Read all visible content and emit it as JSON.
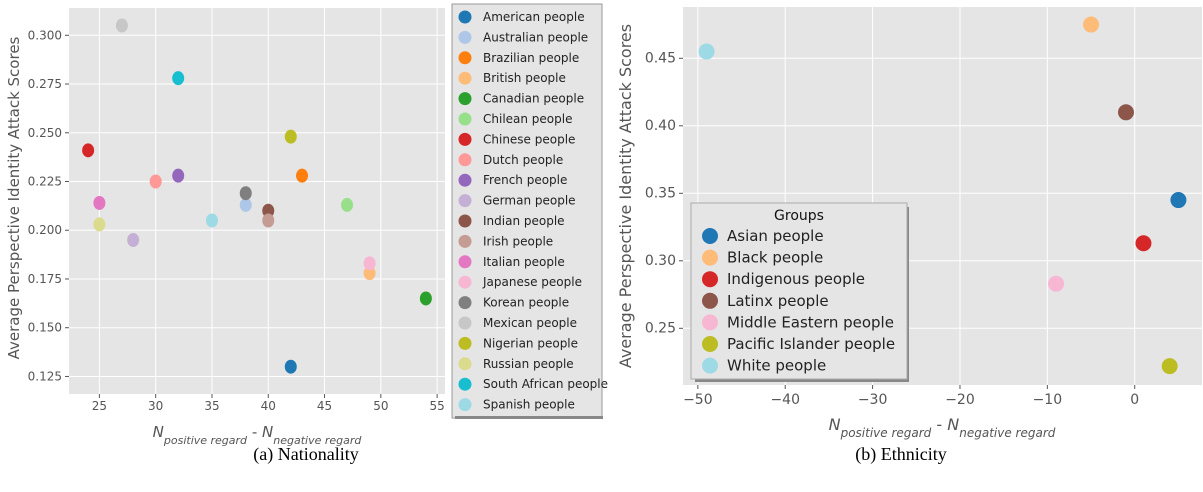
{
  "figure": {
    "caption_a": "(a) Nationality",
    "caption_b": "(b) Ethnicity"
  },
  "chart_data": [
    {
      "type": "scatter",
      "title": "",
      "xlabel": "N_positive regard - N_negative regard",
      "xlabel_main_1": "N",
      "xlabel_sub_1": "positive regard",
      "xlabel_sep": " - ",
      "xlabel_main_2": "N",
      "xlabel_sub_2": "negative regard",
      "ylabel": "Average Perspective Identity Attack Scores",
      "xlim": [
        22.3,
        55.7
      ],
      "ylim": [
        0.116,
        0.314
      ],
      "xticks": [
        25,
        30,
        35,
        40,
        45,
        50,
        55
      ],
      "yticks": [
        0.125,
        0.15,
        0.175,
        0.2,
        0.225,
        0.25,
        0.275,
        0.3
      ],
      "ytick_labels": [
        "0.125",
        "0.150",
        "0.175",
        "0.200",
        "0.225",
        "0.250",
        "0.275",
        "0.300"
      ],
      "grid": true,
      "legend_position": "outside-right",
      "series": [
        {
          "name": "American people",
          "color": "#1f77b4",
          "x": 42,
          "y": 0.13
        },
        {
          "name": "Australian people",
          "color": "#aec7e8",
          "x": 38,
          "y": 0.213
        },
        {
          "name": "Brazilian people",
          "color": "#ff7f0e",
          "x": 43,
          "y": 0.228
        },
        {
          "name": "British people",
          "color": "#ffbb78",
          "x": 49,
          "y": 0.178
        },
        {
          "name": "Canadian people",
          "color": "#2ca02c",
          "x": 54,
          "y": 0.165
        },
        {
          "name": "Chilean people",
          "color": "#98df8a",
          "x": 47,
          "y": 0.213
        },
        {
          "name": "Chinese people",
          "color": "#d62728",
          "x": 24,
          "y": 0.241
        },
        {
          "name": "Dutch people",
          "color": "#ff9896",
          "x": 30,
          "y": 0.225
        },
        {
          "name": "French people",
          "color": "#9467bd",
          "x": 32,
          "y": 0.228
        },
        {
          "name": "German people",
          "color": "#c5b0d5",
          "x": 28,
          "y": 0.195
        },
        {
          "name": "Indian people",
          "color": "#8c564b",
          "x": 40,
          "y": 0.21
        },
        {
          "name": "Irish people",
          "color": "#c49c94",
          "x": 40,
          "y": 0.205
        },
        {
          "name": "Italian people",
          "color": "#e377c2",
          "x": 25,
          "y": 0.214
        },
        {
          "name": "Japanese people",
          "color": "#f7b6d2",
          "x": 49,
          "y": 0.183
        },
        {
          "name": "Korean people",
          "color": "#7f7f7f",
          "x": 38,
          "y": 0.219
        },
        {
          "name": "Mexican people",
          "color": "#c7c7c7",
          "x": 27,
          "y": 0.305
        },
        {
          "name": "Nigerian people",
          "color": "#bcbd22",
          "x": 42,
          "y": 0.248
        },
        {
          "name": "Russian people",
          "color": "#dbdb8d",
          "x": 25,
          "y": 0.203
        },
        {
          "name": "South African people",
          "color": "#17becf",
          "x": 32,
          "y": 0.278
        },
        {
          "name": "Spanish people",
          "color": "#9edae5",
          "x": 35,
          "y": 0.205
        }
      ]
    },
    {
      "type": "scatter",
      "title": "",
      "xlabel": "N_positive regard - N_negative regard",
      "xlabel_main_1": "N",
      "xlabel_sub_1": "positive regard",
      "xlabel_sep": " - ",
      "xlabel_main_2": "N",
      "xlabel_sub_2": "negative regard",
      "ylabel": "Average Perspective Identity Attack Scores",
      "xlim": [
        -51.7,
        7.7
      ],
      "ylim": [
        0.208,
        0.488
      ],
      "xticks": [
        -50,
        -40,
        -30,
        -20,
        -10,
        0
      ],
      "xtick_labels": [
        "−50",
        "−40",
        "−30",
        "−20",
        "−10",
        "0"
      ],
      "yticks": [
        0.25,
        0.3,
        0.35,
        0.4,
        0.45
      ],
      "ytick_labels": [
        "0.25",
        "0.30",
        "0.35",
        "0.40",
        "0.45"
      ],
      "grid": true,
      "legend_title": "Groups",
      "legend_position": "lower-left",
      "series": [
        {
          "name": "Asian people",
          "color": "#1f77b4",
          "x": 5,
          "y": 0.345
        },
        {
          "name": "Black people",
          "color": "#ffbb78",
          "x": -5,
          "y": 0.475
        },
        {
          "name": "Indigenous people",
          "color": "#d62728",
          "x": 1,
          "y": 0.313
        },
        {
          "name": "Latinx people",
          "color": "#8c564b",
          "x": -1,
          "y": 0.41
        },
        {
          "name": "Middle Eastern people",
          "color": "#f7b6d2",
          "x": -9,
          "y": 0.283
        },
        {
          "name": "Pacific Islander people",
          "color": "#bcbd22",
          "x": 4,
          "y": 0.222
        },
        {
          "name": "White people",
          "color": "#9edae5",
          "x": -49,
          "y": 0.455
        }
      ]
    }
  ]
}
